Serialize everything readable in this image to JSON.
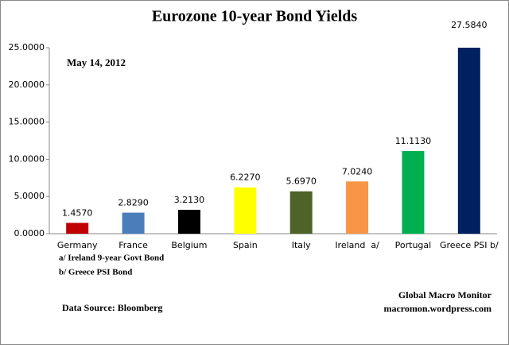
{
  "chart_data": {
    "type": "bar",
    "title": "Eurozone 10-year Bond Yields",
    "date_note": "May 14, 2012",
    "categories": [
      "Germany",
      "France",
      "Belgium",
      "Spain",
      "Italy",
      "Ireland  a/",
      "Portugal",
      "Greece PSI b/"
    ],
    "values": [
      1.457,
      2.829,
      3.213,
      6.227,
      5.697,
      7.024,
      11.113,
      27.584
    ],
    "value_labels": [
      "1.4570",
      "2.8290",
      "3.2130",
      "6.2270",
      "5.6970",
      "7.0240",
      "11.1130",
      "27.5840"
    ],
    "colors": [
      "#c00000",
      "#4a7ebb",
      "#000000",
      "#ffff00",
      "#4f6228",
      "#f79646",
      "#00b050",
      "#002060"
    ],
    "ylim": [
      0,
      25
    ],
    "yticks": [
      {
        "value": 0,
        "label": "0.0000"
      },
      {
        "value": 5,
        "label": "5.0000"
      },
      {
        "value": 10,
        "label": "10.0000"
      },
      {
        "value": 15,
        "label": "15.0000"
      },
      {
        "value": 20,
        "label": "20.0000"
      },
      {
        "value": 25,
        "label": "25.0000"
      }
    ],
    "grid": false,
    "footnotes": [
      "a/ Ireland 9-year Govt Bond",
      "b/  Greece PSI Bond"
    ],
    "source": "Data Source:  Bloomberg",
    "credit": [
      "Global Macro Monitor",
      "macromon.wordpress.com"
    ]
  }
}
